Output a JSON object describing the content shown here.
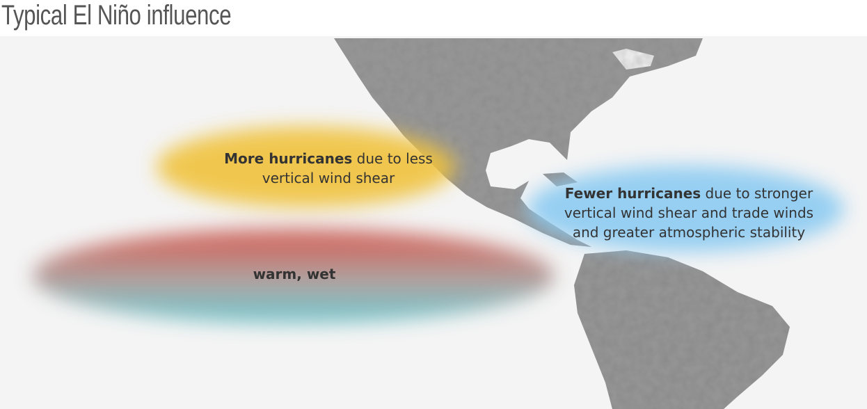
{
  "title": "Typical El Niño influence",
  "annotations": [
    {
      "bold": "More hurricanes",
      "text": "due to less vertical wind shear"
    },
    {
      "bold": "Fewer hurricanes",
      "text": "due to stronger vertical wind shear and trade winds and greater atmospheric stability"
    },
    {
      "bold": "warm, wet"
    }
  ]
}
